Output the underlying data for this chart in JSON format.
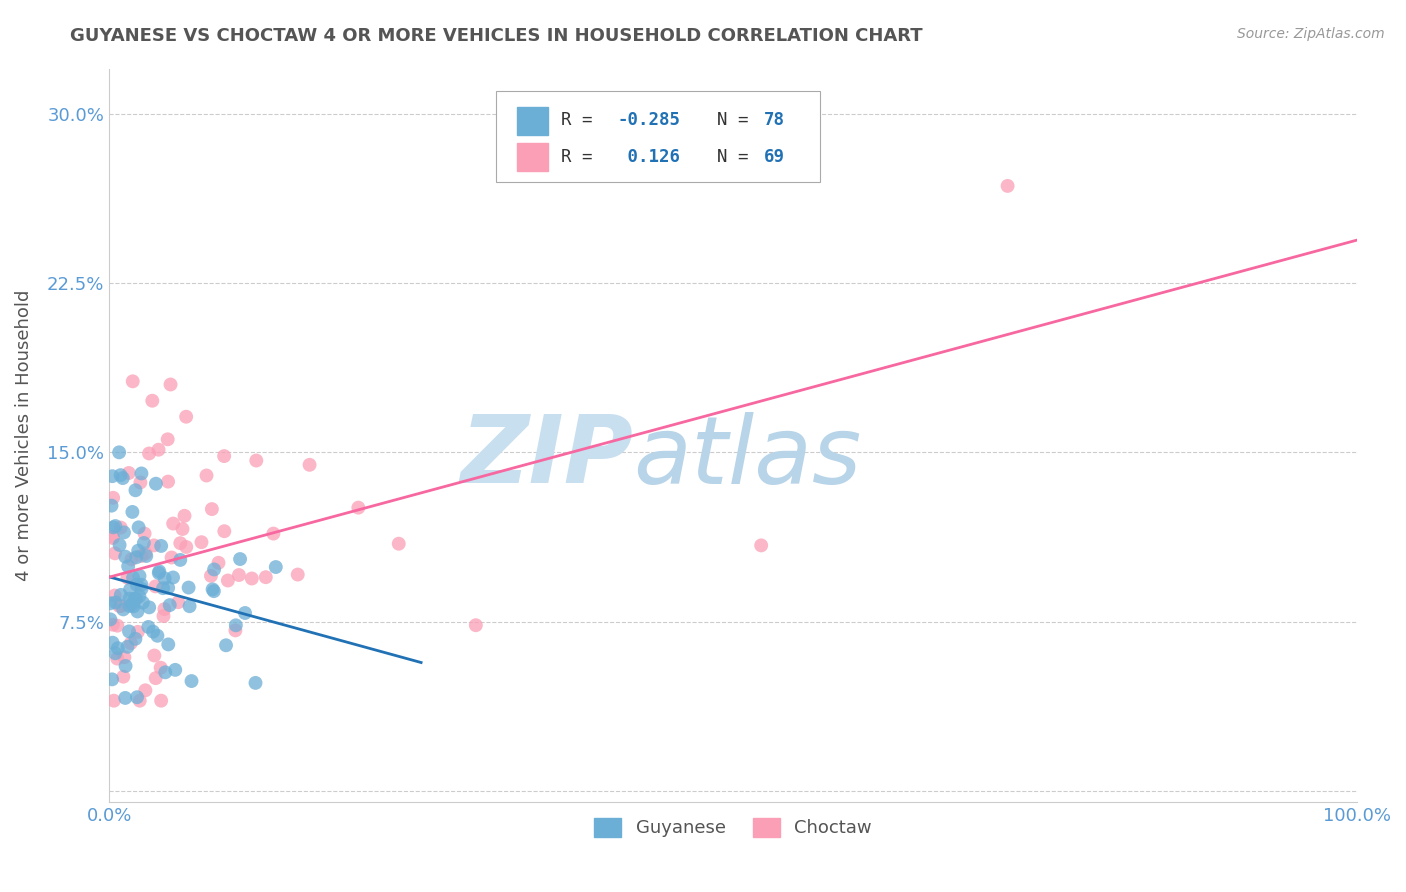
{
  "title": "GUYANESE VS CHOCTAW 4 OR MORE VEHICLES IN HOUSEHOLD CORRELATION CHART",
  "source": "Source: ZipAtlas.com",
  "ylabel_label": "4 or more Vehicles in Household",
  "xlim": [
    0.0,
    100.0
  ],
  "ylim": [
    -0.5,
    32.0
  ],
  "yticks": [
    0.0,
    7.5,
    15.0,
    22.5,
    30.0
  ],
  "ytick_labels": [
    "",
    "7.5%",
    "15.0%",
    "22.5%",
    "30.0%"
  ],
  "xtick_labels": [
    "0.0%",
    "100.0%"
  ],
  "legend_label1": "Guyanese",
  "legend_label2": "Choctaw",
  "blue_color": "#6baed6",
  "pink_color": "#fa9fb5",
  "blue_line_color": "#2171b5",
  "pink_line_color": "#f768a1",
  "watermark_zip_color": "#c8dff0",
  "watermark_atlas_color": "#b8d4e8",
  "title_color": "#555555",
  "axis_label_color": "#555555",
  "tick_color": "#5b9bd5",
  "grid_color": "#cccccc",
  "background_color": "#ffffff",
  "legend_text_color": "#333333",
  "legend_r_color": "#2171b5",
  "legend_n_color": "#2171b5"
}
